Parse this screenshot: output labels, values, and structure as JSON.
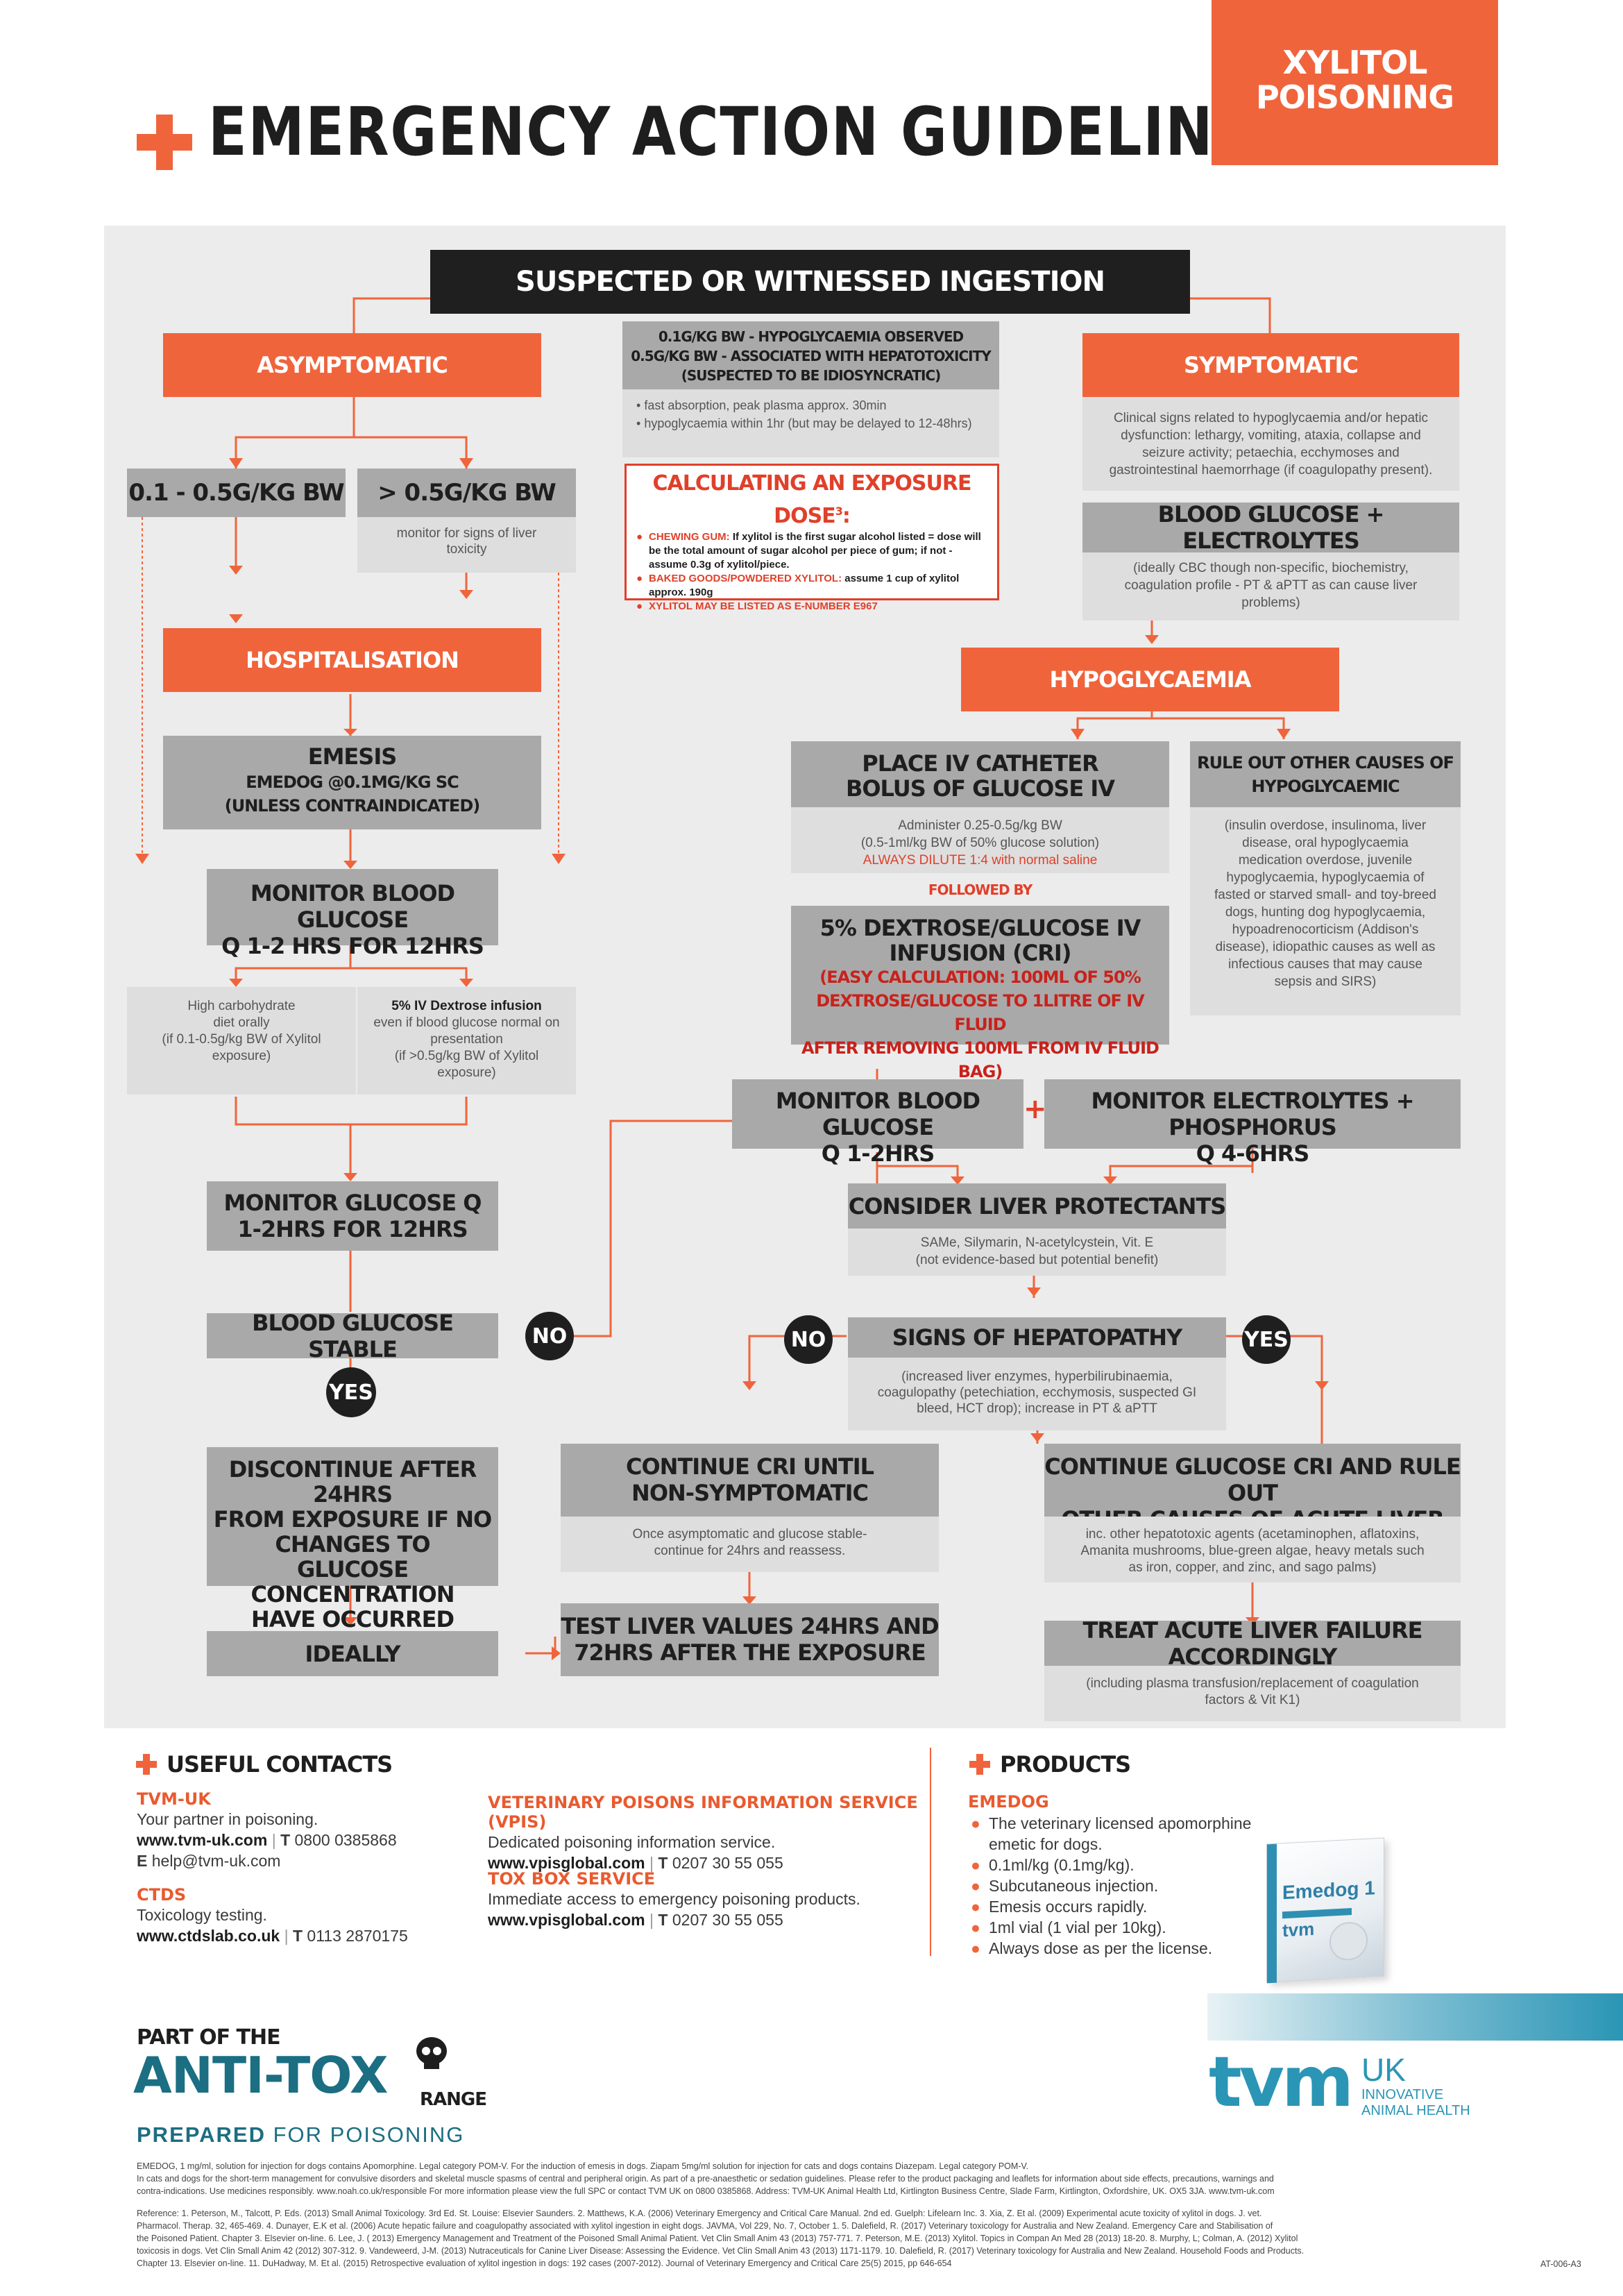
{
  "header": {
    "title": "EMERGENCY ACTION GUIDELINES",
    "badge_line1": "XYLITOL",
    "badge_line2": "POISONING"
  },
  "flow": {
    "top": "SUSPECTED OR WITNESSED INGESTION",
    "dose_info": {
      "line1": "0.1G/KG BW - HYPOGLYCAEMIA OBSERVED",
      "line2": "0.5G/KG BW - ASSOCIATED WITH HEPATOTOXICITY",
      "line3": "(SUSPECTED TO BE IDIOSYNCRATIC)",
      "bullet1": "fast absorption, peak plasma approx. 30min",
      "bullet2": "hypoglycaemia within 1hr (but may be delayed to 12-48hrs)"
    },
    "exposure": {
      "title": "CALCULATING AN EXPOSURE DOSE",
      "sup": "3",
      "item1_label": "CHEWING GUM:",
      "item1_text": "If xylitol is the first  sugar alcohol listed = dose will be the total amount of sugar alcohol per piece of gum; if not - assume 0.3g of xylitol/piece.",
      "item2_label": "BAKED GOODS/POWDERED XYLITOL:",
      "item2_text": "assume 1 cup of xylitol approx. 190g",
      "item3_label": "XYLITOL MAY BE LISTED AS E-NUMBER E967"
    },
    "asymptomatic": "ASYMPTOMATIC",
    "symptomatic": "SYMPTOMATIC",
    "symptomatic_text": "Clinical signs related to hypoglycaemia and/or hepatic dysfunction: lethargy, vomiting, ataxia, collapse and seizure activity; petaechia, ecchymoses and gastrointestinal haemorrhage (if coagulopathy present).",
    "dose_low": "0.1 - 0.5G/KG BW",
    "dose_high": "> 0.5G/KG BW",
    "dose_high_text": "monitor for signs of liver toxicity",
    "blood_glucose_electrolytes": "BLOOD GLUCOSE + ELECTROLYTES",
    "bge_text": "(ideally CBC though non-specific, biochemistry, coagulation profile - PT & aPTT as can cause liver problems)",
    "hospitalisation": "HOSPITALISATION",
    "hypoglycaemia": "HYPOGLYCAEMIA",
    "emesis_title": "EMESIS",
    "emesis_line2": "EMEDOG @0.1MG/KG SC",
    "emesis_line3": "(UNLESS CONTRAINDICATED)",
    "monitor_bg_line1": "MONITOR BLOOD GLUCOSE",
    "monitor_bg_line2": "Q 1-2 HRS FOR 12HRS",
    "high_carb_line1": "High carbohydrate",
    "high_carb_line2": "diet orally",
    "high_carb_line3": "(if 0.1-0.5g/kg BW of Xylitol exposure)",
    "iv_dex_title": "5% IV Dextrose infusion",
    "iv_dex_line2": "even if blood glucose normal on presentation",
    "iv_dex_line3": "(if >0.5g/kg BW of Xylitol exposure)",
    "iv_catheter_line1": "PLACE IV CATHETER",
    "iv_catheter_line2": "BOLUS OF GLUCOSE IV",
    "administer_line1": "Administer 0.25-0.5g/kg BW",
    "administer_line2": "(0.5-1ml/kg BW of 50% glucose solution)",
    "administer_line3": "ALWAYS DILUTE 1:4 with normal saline",
    "followed_by": "FOLLOWED BY",
    "dextrose_line1": "5% DEXTROSE/GLUCOSE IV",
    "dextrose_line2": "INFUSION (CRI)",
    "dextrose_line3": "(EASY CALCULATION: 100ML OF 50%",
    "dextrose_line4": "DEXTROSE/GLUCOSE TO 1LITRE OF IV FLUID",
    "dextrose_line5": "AFTER REMOVING 100ML FROM IV FLUID BAG)",
    "rule_out_line1": "RULE OUT OTHER CAUSES OF",
    "rule_out_line2": "HYPOGLYCAEMIC",
    "rule_out_text": "(insulin overdose, insulinoma, liver disease, oral hypoglycaemia medication overdose, juvenile hypoglycaemia, hypoglycaemia of fasted or starved small- and toy-breed dogs, hunting dog hypoglycaemia, hypoadrenocorticism (Addison's disease), idiopathic causes as well as infectious causes that may cause sepsis and SIRS)",
    "monitor_bg2_line1": "MONITOR BLOOD GLUCOSE",
    "monitor_bg2_line2": "Q 1-2HRS",
    "plus": "+",
    "monitor_elec_line1": "MONITOR ELECTROLYTES + PHOSPHORUS",
    "monitor_elec_line2": "Q 4-6HRS",
    "monitor_glucose_line1": "MONITOR GLUCOSE Q",
    "monitor_glucose_line2": "1-2HRS FOR 12HRS",
    "liver_protectants": "CONSIDER LIVER PROTECTANTS",
    "liver_protectants_line1": "SAMe, Silymarin, N-acetylcystein, Vit. E",
    "liver_protectants_line2": "(not evidence-based but potential benefit)",
    "bg_stable": "BLOOD GLUCOSE STABLE",
    "no": "NO",
    "yes": "YES",
    "signs_hepatopathy": "SIGNS OF HEPATOPATHY",
    "signs_text": "(increased liver enzymes, hyperbilirubinaemia, coagulopathy (petechiation, ecchymosis, suspected GI bleed, HCT drop); increase in PT & aPTT",
    "discontinue_line1": "DISCONTINUE AFTER 24HRS",
    "discontinue_line2": "FROM EXPOSURE IF NO",
    "discontinue_line3": "CHANGES TO",
    "discontinue_line4": "GLUCOSE CONCENTRATION",
    "discontinue_line5": "HAVE OCCURRED",
    "continue_cri_line1": "CONTINUE CRI UNTIL",
    "continue_cri_line2": "NON-SYMPTOMATIC",
    "continue_cri_text": "Once asymptomatic and glucose stable- continue for 24hrs and reassess.",
    "continue_glucose_line1": "CONTINUE GLUCOSE CRI AND RULE OUT",
    "continue_glucose_line2": "OTHER CAUSES OF ACUTE LIVER FAILURE",
    "continue_glucose_text": "inc. other hepatotoxic agents (acetaminophen, aflatoxins, Amanita  mushrooms, blue-green algae, heavy metals such as iron, copper, and zinc, and sago palms)",
    "ideally": "IDEALLY",
    "test_liver_line1": "TEST LIVER VALUES 24HRS AND",
    "test_liver_line2": "72HRS AFTER THE EXPOSURE",
    "treat_alf": "TREAT ACUTE LIVER FAILURE ACCORDINGLY",
    "treat_alf_text": "(including plasma transfusion/replacement of coagulation factors & Vit K1)"
  },
  "contacts": {
    "heading": "USEFUL CONTACTS",
    "tvm_name": "TVM-UK",
    "tvm_desc": "Your partner in poisoning.",
    "tvm_web": "www.tvm-uk.com",
    "tvm_t": "T",
    "tvm_phone": "0800 0385868",
    "tvm_e": "E",
    "tvm_email": "help@tvm-uk.com",
    "ctds_name": "CTDS",
    "ctds_desc": "Toxicology testing.",
    "ctds_web": "www.ctdslab.co.uk",
    "ctds_t": "T",
    "ctds_phone": "0113 2870175",
    "vpis_name": "VETERINARY POISONS INFORMATION SERVICE (VPIS)",
    "vpis_desc": "Dedicated poisoning information service.",
    "vpis_web": "www.vpisglobal.com",
    "vpis_t": "T",
    "vpis_phone": "0207 30 55 055",
    "toxbox_name": "TOX BOX SERVICE",
    "toxbox_desc": "Immediate access to emergency poisoning products.",
    "toxbox_web": "www.vpisglobal.com",
    "toxbox_t": "T",
    "toxbox_phone": "0207 30 55 055"
  },
  "products": {
    "heading": "PRODUCTS",
    "emedog_name": "EMEDOG",
    "bullets": [
      "The veterinary licensed apomorphine emetic for dogs.",
      "0.1ml/kg (0.1mg/kg).",
      "Subcutaneous injection.",
      "Emesis occurs rapidly.",
      "1ml vial (1 vial per 10kg).",
      "Always dose as per the license."
    ],
    "box_title": "Emedog 1",
    "box_brand": "tvm"
  },
  "branding": {
    "part_of": "PART OF THE",
    "anti": "ANTI-TO",
    "x": "X",
    "range": "RANGE",
    "prepared": "PREPARED",
    "for_poisoning": "FOR POISONING",
    "tvm_logo": "tvm",
    "tvm_uk": "UK",
    "innovative": "INNOVATIVE",
    "animal_health": "ANIMAL HEALTH"
  },
  "footer": {
    "legal1": "EMEDOG, 1 mg/ml, solution for injection for dogs contains Apomorphine. Legal category POM-V. For the induction of emesis in dogs. Ziapam 5mg/ml solution for injection for cats and dogs contains Diazepam. Legal category POM-V.",
    "legal2": "In cats and dogs for the short-term management for convulsive disorders and skeletal muscle spasms of central and peripheral origin. As part of a pre-anaesthetic or sedation guidelines. Please refer to the product packaging and leaflets for information about side effects, precautions, warnings and",
    "legal3": "contra-indications. Use medicines responsibly. www.noah.co.uk/responsible For more information please view the full SPC or contact TVM UK on 0800 0385868. Address: TVM-UK Animal Health Ltd, Kirtlington Business Centre, Slade Farm, Kirtlington, Oxfordshire, UK. OX5 3JA. www.tvm-uk.com",
    "ref1": "Reference: 1. Peterson, M., Talcott, P. Eds. (2013) Small Animal Toxicology. 3rd Ed. St. Louise: Elsevier Saunders. 2. Matthews, K.A. (2006) Veterinary Emergency and Critical Care Manual. 2nd ed. Guelph: Lifelearn Inc. 3. Xia, Z. Et al. (2009) Experimental acute toxicity of xylitol in dogs. J. vet.",
    "ref2": "Pharmacol. Therap. 32, 465-469. 4. Dunayer, E.K et al. (2006) Acute hepatic failure and coagulopathy associated with xylitol ingestion in eight dogs. JAVMA, Vol 229, No. 7, October 1. 5. Dalefield, R. (2017) Veterinary toxicology for Australia and New Zealand. Emergency Care and Stabilisation of",
    "ref3": "the Poisoned Patient. Chapter 3. Elsevier on-line. 6. Lee, J. ( 2013) Emergency Management and Treatment of the Poisoned Small Animal Patient. Vet Clin Small Anim 43 (2013) 757-771. 7. Peterson, M.E. (2013) Xylitol. Topics in Compan An Med 28 (2013) 18-20. 8. Murphy, L; Colman, A. (2012) Xylitol",
    "ref4": "toxicosis in dogs. Vet Clin Small Anim 42 (2012) 307-312. 9. Vandeweerd, J-M. (2013) Nutraceuticals for Canine Liver Disease: Assessing the Evidence. Vet Clin Small Anim 43 (2013) 1171-1179. 10. Dalefield, R. (2017) Veterinary toxicology for Australia and New Zealand. Household Foods and Products.",
    "ref5": "Chapter 13. Elsevier on-line. 11. DuHadway, M. Et al. (2015) Retrospective evaluation of xylitol ingestion in dogs: 192 cases (2007-2012). Journal of Veterinary Emergency and Critical Care 25(5) 2015, pp 646-654",
    "code": "AT-006-A3"
  }
}
